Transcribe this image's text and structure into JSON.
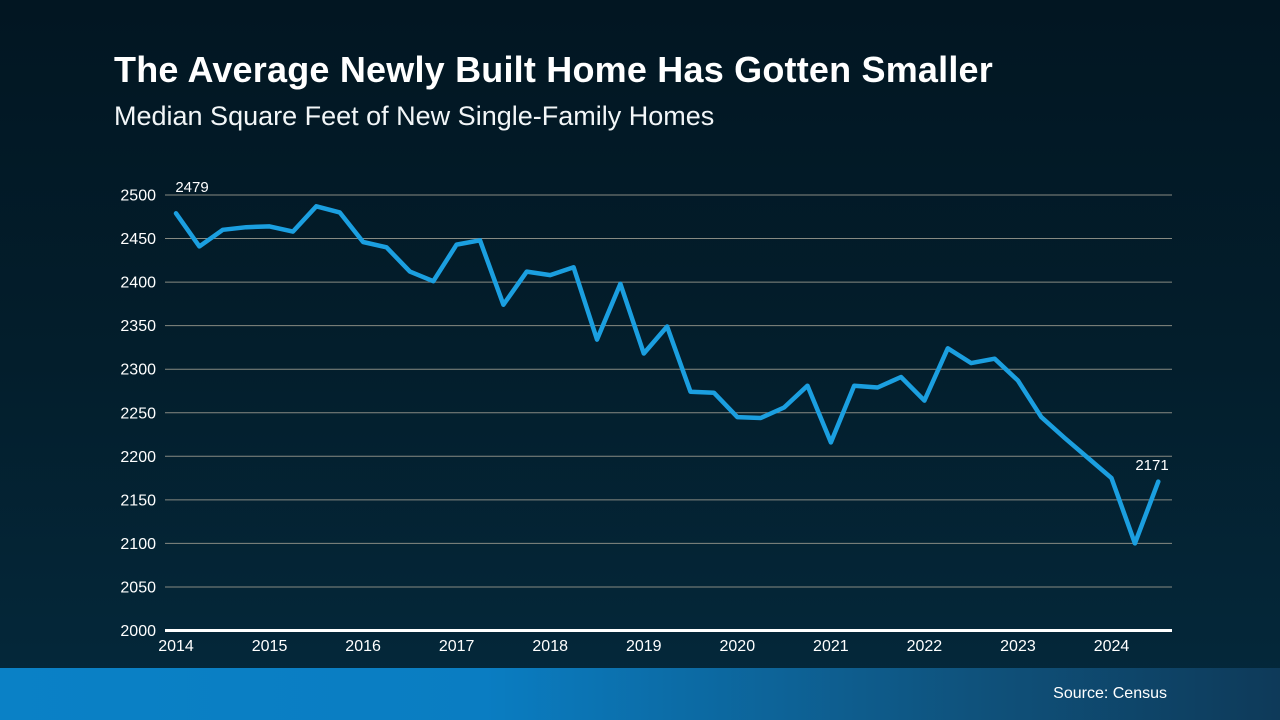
{
  "title": "The Average Newly Built Home Has Gotten Smaller",
  "subtitle": "Median Square Feet of New Single-Family Homes",
  "source": "Source: Census",
  "colors": {
    "background_top": "#021622",
    "background_bottom": "#04293c",
    "line": "#1b9fe0",
    "gridline": "#878a82",
    "axis_line": "#ffffff",
    "text": "#ffffff",
    "footer_left": "#0a81c6",
    "footer_right": "#0e3a59"
  },
  "chart_data": {
    "type": "line",
    "title": "The Average Newly Built Home Has Gotten Smaller",
    "subtitle": "Median Square Feet of New Single-Family Homes",
    "xlabel": "",
    "ylabel": "",
    "x_unit": "quarter",
    "x_start": "2014 Q1",
    "x_end": "2024 Q3",
    "x_tick_labels": [
      "2014",
      "2015",
      "2016",
      "2017",
      "2018",
      "2019",
      "2020",
      "2021",
      "2022",
      "2023",
      "2024"
    ],
    "ylim": [
      2000,
      2500
    ],
    "ytick_step": 50,
    "ytick_labels": [
      "2000",
      "2050",
      "2100",
      "2150",
      "2200",
      "2250",
      "2300",
      "2350",
      "2400",
      "2450",
      "2500"
    ],
    "grid": true,
    "legend": false,
    "values": [
      2479,
      2441,
      2460,
      2463,
      2464,
      2458,
      2487,
      2480,
      2446,
      2440,
      2412,
      2401,
      2443,
      2448,
      2374,
      2412,
      2408,
      2417,
      2334,
      2398,
      2318,
      2349,
      2274,
      2273,
      2245,
      2244,
      2256,
      2281,
      2216,
      2281,
      2279,
      2291,
      2264,
      2324,
      2307,
      2312,
      2287,
      2245,
      2221,
      2198,
      2175,
      2100,
      2171
    ],
    "first_point_label": "2479",
    "last_point_label": "2171"
  }
}
